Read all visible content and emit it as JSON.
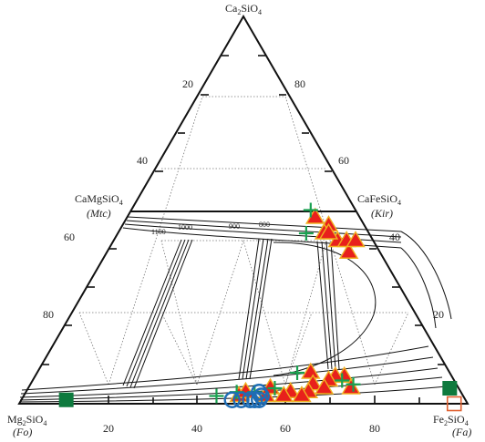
{
  "vertices": {
    "top": {
      "formula_main": "Ca",
      "formula_sub1": "2",
      "formula_mid": "SiO",
      "formula_sub2": "4",
      "abbr": ""
    },
    "bottom_left": {
      "formula_main": "Mg",
      "formula_sub1": "2",
      "formula_mid": "SiO",
      "formula_sub2": "4",
      "abbr": "(Fo)"
    },
    "bottom_right": {
      "formula_main": "Fe",
      "formula_sub1": "2",
      "formula_mid": "SiO",
      "formula_sub2": "4",
      "abbr": "(Fa)"
    }
  },
  "midpoints": {
    "left": {
      "formula_main": "CaMgSiO",
      "formula_sub": "4",
      "abbr": "(Mtc)"
    },
    "right": {
      "formula_main": "CaFeSiO",
      "formula_sub": "4",
      "abbr": "(Kir)"
    }
  },
  "tick_labels": {
    "bottom": [
      "20",
      "40",
      "60",
      "80"
    ],
    "left": [
      "20",
      "40",
      "60",
      "80"
    ],
    "right": [
      "80",
      "60",
      "40",
      "20"
    ]
  },
  "isotherm_labels": [
    "1100",
    "1000",
    "900",
    "800"
  ],
  "colors": {
    "frame": "#111111",
    "grid": "#777777",
    "triangle_fill": "#e8201c",
    "triangle_edge": "#f0b020",
    "cross": "#1aa050",
    "circle": "#1f6db5",
    "square_filled": "#0e7a3e",
    "square_open": "#e06030"
  },
  "chart_data": {
    "type": "ternary",
    "apexes": [
      "Ca2SiO4",
      "Mg2SiO4",
      "Fe2SiO4"
    ],
    "grid_step_percent": 20,
    "series": [
      {
        "marker": "filled-triangle",
        "color": "#e8201c",
        "points": [
          [
            48,
            10
          ],
          [
            46,
            8
          ],
          [
            44,
            10
          ],
          [
            42,
            8
          ],
          [
            44,
            9
          ],
          [
            42,
            6
          ],
          [
            39,
            7
          ],
          [
            42,
            4
          ],
          [
            8,
            31
          ],
          [
            7,
            24
          ],
          [
            7,
            26
          ],
          [
            6,
            28
          ],
          [
            5,
            32
          ],
          [
            4,
            24
          ],
          [
            4,
            30
          ],
          [
            3,
            34
          ],
          [
            3,
            38
          ],
          [
            2,
            44
          ],
          [
            2,
            36
          ],
          [
            2,
            40
          ],
          [
            4,
            42
          ],
          [
            2,
            50
          ],
          [
            3,
            48
          ]
        ]
      },
      {
        "marker": "cross",
        "color": "#1aa050",
        "points": [
          [
            50,
            10
          ],
          [
            44,
            14
          ],
          [
            5,
            23
          ],
          [
            6,
            25
          ],
          [
            4,
            41
          ],
          [
            8,
            34
          ],
          [
            3,
            46
          ],
          [
            3,
            50
          ],
          [
            2,
            55
          ]
        ]
      },
      {
        "marker": "open-circle",
        "color": "#1f6db5",
        "points": [
          [
            3,
            45
          ],
          [
            2,
            45
          ],
          [
            1,
            47
          ],
          [
            1,
            46
          ],
          [
            1,
            48
          ],
          [
            1,
            50
          ],
          [
            1,
            52
          ]
        ]
      },
      {
        "marker": "filled-square",
        "color": "#0e7a3e",
        "points": [
          [
            1,
            89
          ],
          [
            4,
            2
          ]
        ]
      },
      {
        "marker": "open-square",
        "color": "#e06030",
        "points": [
          [
            0,
            3
          ]
        ]
      }
    ]
  }
}
